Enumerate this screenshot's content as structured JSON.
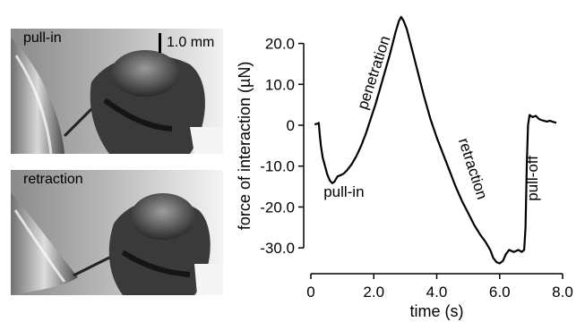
{
  "panels": {
    "top": {
      "label": "pull-in",
      "scalebar": "1.0 mm"
    },
    "bottom": {
      "label": "retraction"
    }
  },
  "chart_data": {
    "type": "line",
    "xlabel": "time (s)",
    "ylabel": "force of interaction (µN)",
    "xlim": [
      0,
      8
    ],
    "ylim": [
      -35,
      28
    ],
    "xticks": [
      "0",
      "2.0",
      "4.0",
      "6.0",
      "8.0"
    ],
    "xtick_values": [
      0,
      2,
      4,
      6,
      8
    ],
    "yticks": [
      "20.0",
      "10.0",
      "0",
      "-10.0",
      "-20.0",
      "-30.0"
    ],
    "ytick_values": [
      20,
      10,
      0,
      -10,
      -20,
      -30
    ],
    "annotations": [
      {
        "text": "pull-in",
        "x": 1.05,
        "y": -17.5,
        "rotate": 0
      },
      {
        "text": "penetration",
        "x": 2.15,
        "y": 12.5,
        "rotate": -72
      },
      {
        "text": "retraction",
        "x": 5.0,
        "y": -11,
        "rotate": 72
      },
      {
        "text": "pull-off",
        "x": 7.2,
        "y": -13,
        "rotate": -90
      }
    ],
    "series": [
      {
        "values": [
          [
            0.12,
            0.2
          ],
          [
            0.22,
            0.4
          ],
          [
            0.25,
            0.6
          ],
          [
            0.28,
            -2
          ],
          [
            0.32,
            -5
          ],
          [
            0.38,
            -8
          ],
          [
            0.45,
            -10
          ],
          [
            0.52,
            -12
          ],
          [
            0.6,
            -13.5
          ],
          [
            0.68,
            -14.2
          ],
          [
            0.75,
            -13.8
          ],
          [
            0.85,
            -12.5
          ],
          [
            0.95,
            -12.2
          ],
          [
            1.05,
            -11.8
          ],
          [
            1.15,
            -11
          ],
          [
            1.3,
            -9.5
          ],
          [
            1.45,
            -7.5
          ],
          [
            1.6,
            -5
          ],
          [
            1.75,
            -2
          ],
          [
            1.9,
            1.5
          ],
          [
            2.05,
            5
          ],
          [
            2.2,
            9
          ],
          [
            2.35,
            13
          ],
          [
            2.5,
            17
          ],
          [
            2.6,
            20
          ],
          [
            2.7,
            23
          ],
          [
            2.8,
            25.5
          ],
          [
            2.87,
            26.5
          ],
          [
            2.95,
            25.5
          ],
          [
            3.05,
            23.5
          ],
          [
            3.2,
            19
          ],
          [
            3.4,
            13
          ],
          [
            3.6,
            7
          ],
          [
            3.8,
            1.5
          ],
          [
            4.0,
            -3
          ],
          [
            4.2,
            -7
          ],
          [
            4.4,
            -11
          ],
          [
            4.6,
            -15
          ],
          [
            4.8,
            -18.5
          ],
          [
            5.0,
            -21.5
          ],
          [
            5.2,
            -24.5
          ],
          [
            5.4,
            -27
          ],
          [
            5.55,
            -28.5
          ],
          [
            5.7,
            -30.5
          ],
          [
            5.8,
            -32.5
          ],
          [
            5.9,
            -33.5
          ],
          [
            6.0,
            -33.8
          ],
          [
            6.1,
            -33.2
          ],
          [
            6.2,
            -31.5
          ],
          [
            6.3,
            -30.5
          ],
          [
            6.45,
            -31
          ],
          [
            6.6,
            -30.5
          ],
          [
            6.7,
            -31
          ],
          [
            6.78,
            -30.5
          ],
          [
            6.82,
            -25
          ],
          [
            6.86,
            -10
          ],
          [
            6.9,
            0
          ],
          [
            6.95,
            2.5
          ],
          [
            7.05,
            2
          ],
          [
            7.15,
            2.3
          ],
          [
            7.25,
            1.5
          ],
          [
            7.35,
            1.2
          ],
          [
            7.5,
            0.9
          ],
          [
            7.6,
            1.1
          ],
          [
            7.7,
            0.8
          ],
          [
            7.8,
            0.6
          ]
        ]
      }
    ]
  }
}
